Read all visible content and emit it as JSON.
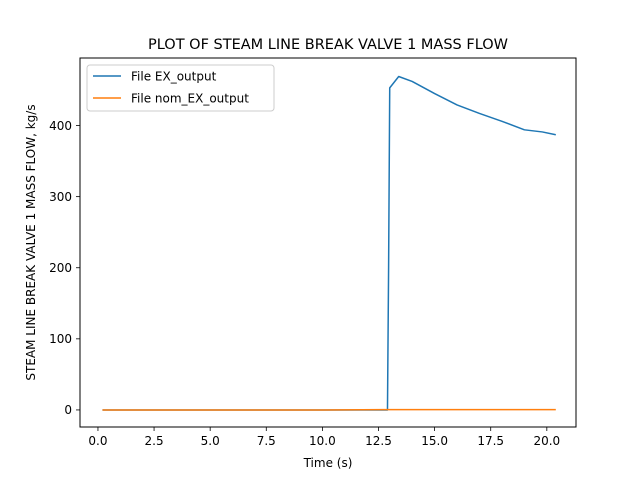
{
  "chart_data": {
    "type": "line",
    "title": "PLOT OF STEAM LINE BREAK VALVE 1 MASS FLOW",
    "xlabel": "Time (s)",
    "ylabel": "STEAM LINE BREAK VALVE 1 MASS FLOW, kg/s",
    "xlim": [
      -0.8,
      21.3
    ],
    "ylim": [
      -24,
      495
    ],
    "xticks": [
      0.0,
      2.5,
      5.0,
      7.5,
      10.0,
      12.5,
      15.0,
      17.5,
      20.0
    ],
    "xtick_labels": [
      "0.0",
      "2.5",
      "5.0",
      "7.5",
      "10.0",
      "12.5",
      "15.0",
      "17.5",
      "20.0"
    ],
    "yticks": [
      0,
      100,
      200,
      300,
      400
    ],
    "ytick_labels": [
      "0",
      "100",
      "200",
      "300",
      "400"
    ],
    "grid": false,
    "legend_position": "top-left",
    "series": [
      {
        "name": "File EX_output",
        "color": "#1f77b4",
        "x": [
          0.2,
          12.9,
          12.95,
          13.0,
          13.4,
          14.0,
          15.0,
          16.0,
          17.0,
          18.0,
          19.0,
          19.8,
          20.4
        ],
        "y": [
          0,
          0,
          200,
          453,
          469,
          462,
          445,
          429,
          417,
          406,
          394,
          391,
          387
        ]
      },
      {
        "name": "File nom_EX_output",
        "color": "#ff7f0e",
        "x": [
          0.2,
          5.0,
          10.0,
          12.9,
          15.0,
          20.4
        ],
        "y": [
          0,
          0,
          0,
          0.5,
          0.5,
          0.5
        ]
      }
    ]
  }
}
